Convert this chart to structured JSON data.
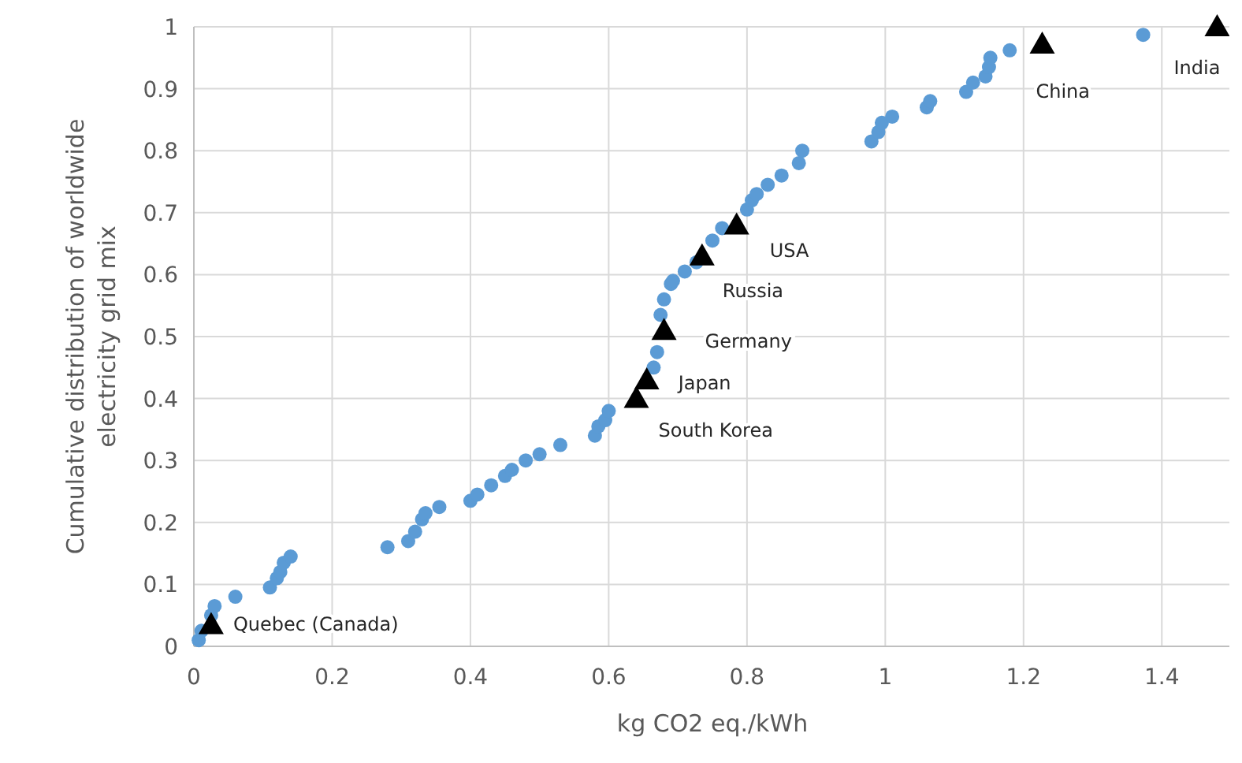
{
  "chart_data": {
    "type": "scatter",
    "xlabel": "kg CO2 eq./kWh",
    "ylabel": "Cumulative distribution of worldwide electricity grid mix",
    "xlim": [
      0,
      1.5
    ],
    "ylim": [
      0,
      1
    ],
    "xticks": [
      0,
      0.2,
      0.4,
      0.6,
      0.8,
      1,
      1.2,
      1.4
    ],
    "yticks": [
      0,
      0.1,
      0.2,
      0.3,
      0.4,
      0.5,
      0.6,
      0.7,
      0.8,
      0.9,
      1
    ],
    "grid": true,
    "series": [
      {
        "color": "#5b9bd5",
        "marker": "circle",
        "x": [
          0.007,
          0.011,
          0.025,
          0.03,
          0.06,
          0.11,
          0.12,
          0.125,
          0.13,
          0.14,
          0.28,
          0.31,
          0.32,
          0.33,
          0.335,
          0.355,
          0.4,
          0.41,
          0.43,
          0.45,
          0.46,
          0.48,
          0.5,
          0.53,
          0.58,
          0.585,
          0.595,
          0.6,
          0.665,
          0.67,
          0.675,
          0.68,
          0.69,
          0.693,
          0.71,
          0.727,
          0.75,
          0.764,
          0.8,
          0.807,
          0.814,
          0.83,
          0.85,
          0.875,
          0.88,
          0.98,
          0.99,
          0.995,
          1.01,
          1.06,
          1.065,
          1.117,
          1.127,
          1.145,
          1.15,
          1.152,
          1.18,
          1.373
        ],
        "values": [
          0.01,
          0.025,
          0.05,
          0.065,
          0.08,
          0.095,
          0.11,
          0.12,
          0.135,
          0.145,
          0.16,
          0.17,
          0.185,
          0.205,
          0.215,
          0.225,
          0.235,
          0.245,
          0.26,
          0.275,
          0.285,
          0.3,
          0.31,
          0.325,
          0.34,
          0.355,
          0.365,
          0.38,
          0.45,
          0.475,
          0.535,
          0.56,
          0.585,
          0.59,
          0.605,
          0.62,
          0.655,
          0.675,
          0.705,
          0.72,
          0.73,
          0.745,
          0.76,
          0.78,
          0.8,
          0.815,
          0.83,
          0.845,
          0.855,
          0.87,
          0.88,
          0.895,
          0.91,
          0.92,
          0.935,
          0.95,
          0.962,
          0.987
        ]
      },
      {
        "color": "#000000",
        "marker": "triangle",
        "x": [
          0.025,
          0.64,
          0.655,
          0.68,
          0.735,
          0.785,
          1.227,
          1.48
        ],
        "values": [
          0.035,
          0.4,
          0.43,
          0.51,
          0.63,
          0.68,
          0.972,
          1.0
        ]
      }
    ],
    "annotations": [
      {
        "text": "Quebec (Canada)",
        "x": 0.025,
        "y": 0.035
      },
      {
        "text": "South Korea",
        "x": 0.64,
        "y": 0.4
      },
      {
        "text": "Japan",
        "x": 0.655,
        "y": 0.43
      },
      {
        "text": "Germany",
        "x": 0.68,
        "y": 0.51
      },
      {
        "text": "Russia",
        "x": 0.735,
        "y": 0.63
      },
      {
        "text": "USA",
        "x": 0.785,
        "y": 0.68
      },
      {
        "text": "China",
        "x": 1.227,
        "y": 0.972
      },
      {
        "text": "India",
        "x": 1.48,
        "y": 1.0
      }
    ]
  }
}
